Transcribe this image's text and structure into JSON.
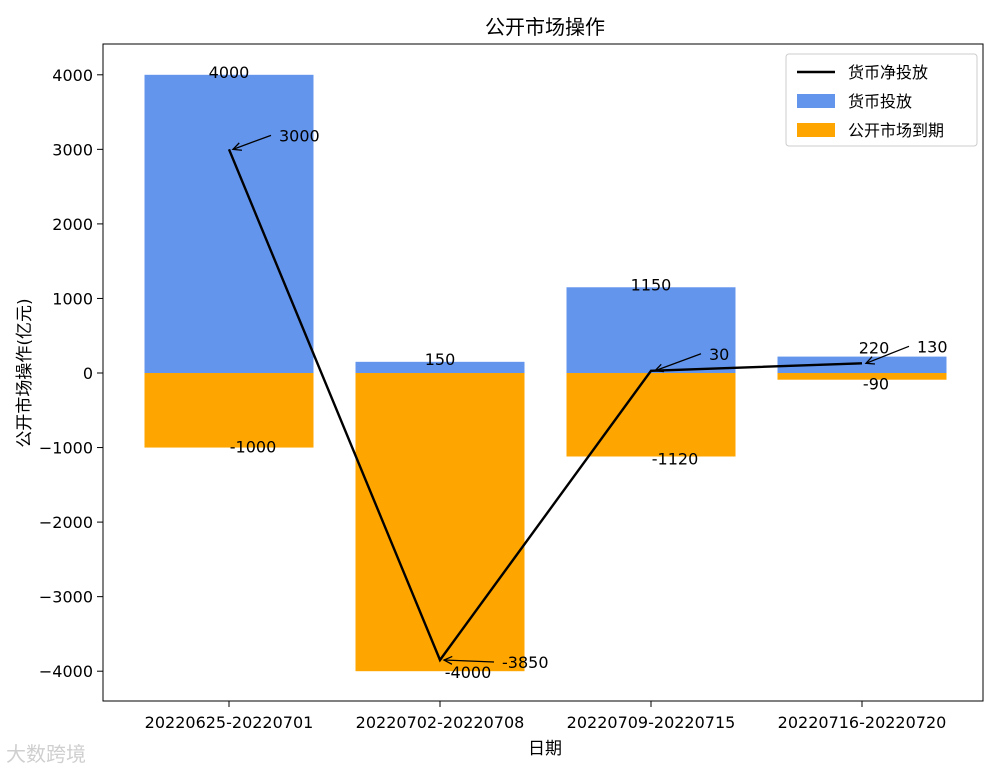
{
  "chart_data": {
    "type": "bar",
    "title": "公开市场操作",
    "xlabel": "日期",
    "ylabel": "公开市场操作(亿元)",
    "categories": [
      "20220625-20220701",
      "20220702-20220708",
      "20220709-20220715",
      "20220716-20220720"
    ],
    "ylim": [
      -4400,
      4400
    ],
    "yticks": [
      -4000,
      -3000,
      -2000,
      -1000,
      0,
      1000,
      2000,
      3000,
      4000
    ],
    "ytick_labels": [
      "−4000",
      "−3000",
      "−2000",
      "−1000",
      "0",
      "1000",
      "2000",
      "3000",
      "4000"
    ],
    "series": [
      {
        "name": "货币净投放",
        "kind": "line",
        "color": "#000000",
        "values": [
          3000,
          -3850,
          30,
          130
        ],
        "labels": [
          "3000",
          "-3850",
          "30",
          "130"
        ]
      },
      {
        "name": "货币投放",
        "kind": "bar",
        "color": "#6495ED",
        "values": [
          4000,
          150,
          1150,
          220
        ],
        "labels": [
          "4000",
          "150",
          "1150",
          "220"
        ]
      },
      {
        "name": "公开市场到期",
        "kind": "bar",
        "color": "#FFA500",
        "values": [
          -1000,
          -4000,
          -1120,
          -90
        ],
        "labels": [
          "-1000",
          "-4000",
          "-1120",
          "-90"
        ]
      }
    ],
    "legend_position": "top-right",
    "grid": false
  },
  "watermark": "大数跨境"
}
